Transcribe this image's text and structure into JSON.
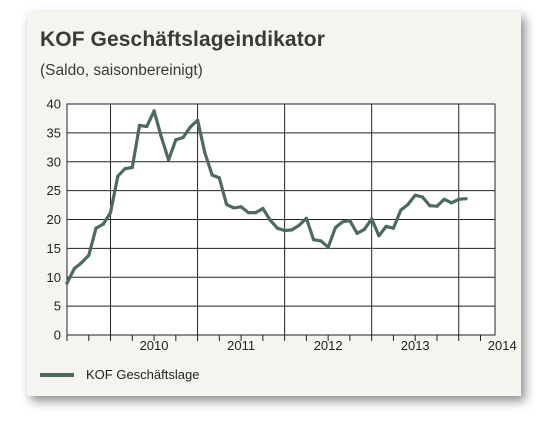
{
  "chart_data": {
    "type": "line",
    "title": "KOF Geschäftslageindikator",
    "subtitle": "(Saldo, saisonbereinigt)",
    "xlabel": "",
    "ylabel": "",
    "ylim": [
      0,
      40
    ],
    "yticks": [
      0,
      5,
      10,
      15,
      20,
      25,
      30,
      35,
      40
    ],
    "xlim": [
      "2009-07",
      "2014-06"
    ],
    "year_labels": [
      "2010",
      "2011",
      "2012",
      "2013",
      "2014"
    ],
    "grid": true,
    "legend_position": "bottom-left",
    "series": [
      {
        "name": "KOF Geschäftslage",
        "color": "#4a6b5d",
        "points": [
          [
            "2009-07",
            9.0
          ],
          [
            "2009-08",
            11.5
          ],
          [
            "2009-09",
            12.5
          ],
          [
            "2009-10",
            13.8
          ],
          [
            "2009-11",
            18.5
          ],
          [
            "2009-12",
            19.2
          ],
          [
            "2010-01",
            21.2
          ],
          [
            "2010-02",
            27.5
          ],
          [
            "2010-03",
            28.8
          ],
          [
            "2010-04",
            29.0
          ],
          [
            "2010-05",
            36.3
          ],
          [
            "2010-06",
            36.1
          ],
          [
            "2010-07",
            38.8
          ],
          [
            "2010-08",
            34.3
          ],
          [
            "2010-09",
            30.3
          ],
          [
            "2010-10",
            33.8
          ],
          [
            "2010-11",
            34.2
          ],
          [
            "2010-12",
            36.0
          ],
          [
            "2011-01",
            37.2
          ],
          [
            "2011-02",
            31.6
          ],
          [
            "2011-03",
            27.7
          ],
          [
            "2011-04",
            27.2
          ],
          [
            "2011-05",
            22.6
          ],
          [
            "2011-06",
            22.0
          ],
          [
            "2011-07",
            22.2
          ],
          [
            "2011-08",
            21.2
          ],
          [
            "2011-09",
            21.2
          ],
          [
            "2011-10",
            21.9
          ],
          [
            "2011-11",
            19.9
          ],
          [
            "2011-12",
            18.5
          ],
          [
            "2012-01",
            18.1
          ],
          [
            "2012-02",
            18.2
          ],
          [
            "2012-03",
            19.0
          ],
          [
            "2012-04",
            20.2
          ],
          [
            "2012-05",
            16.5
          ],
          [
            "2012-06",
            16.3
          ],
          [
            "2012-07",
            15.2
          ],
          [
            "2012-08",
            18.6
          ],
          [
            "2012-09",
            19.6
          ],
          [
            "2012-10",
            19.8
          ],
          [
            "2012-11",
            17.6
          ],
          [
            "2012-12",
            18.3
          ],
          [
            "2013-01",
            20.1
          ],
          [
            "2013-02",
            17.2
          ],
          [
            "2013-03",
            18.8
          ],
          [
            "2013-04",
            18.5
          ],
          [
            "2013-05",
            21.6
          ],
          [
            "2013-06",
            22.6
          ],
          [
            "2013-07",
            24.2
          ],
          [
            "2013-08",
            23.9
          ],
          [
            "2013-09",
            22.4
          ],
          [
            "2013-10",
            22.3
          ],
          [
            "2013-11",
            23.5
          ],
          [
            "2013-12",
            22.9
          ],
          [
            "2014-01",
            23.5
          ],
          [
            "2014-02",
            23.6
          ]
        ]
      }
    ]
  }
}
